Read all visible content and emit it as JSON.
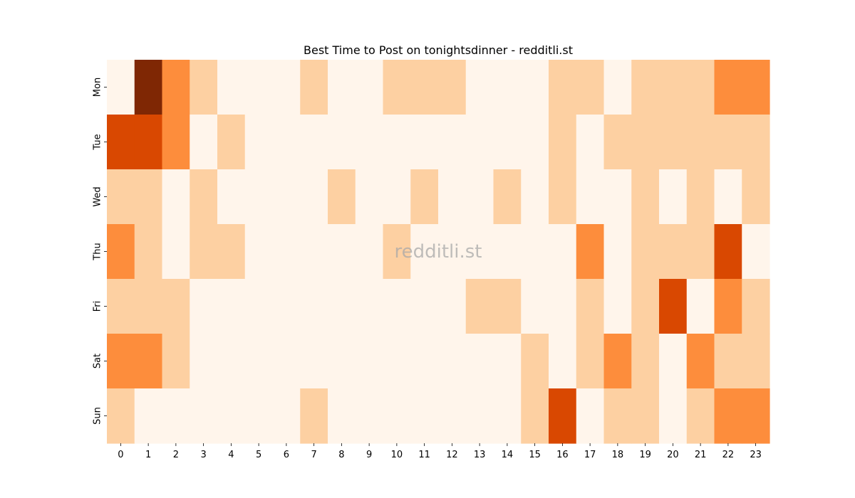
{
  "chart_data": {
    "type": "heatmap",
    "title": "Best Time to Post on tonightsdinner - redditli.st",
    "watermark": "redditli.st",
    "xlabel": "",
    "ylabel": "",
    "x": [
      "0",
      "1",
      "2",
      "3",
      "4",
      "5",
      "6",
      "7",
      "8",
      "9",
      "10",
      "11",
      "12",
      "13",
      "14",
      "15",
      "16",
      "17",
      "18",
      "19",
      "20",
      "21",
      "22",
      "23"
    ],
    "y": [
      "Mon",
      "Tue",
      "Wed",
      "Thu",
      "Fri",
      "Sat",
      "Sun"
    ],
    "colormap": "Oranges",
    "palette": [
      "#fff5eb",
      "#fdd0a2",
      "#fd8d3c",
      "#d94801",
      "#7f2704"
    ],
    "legend": "none",
    "grid": false,
    "values": [
      [
        0,
        4,
        2,
        1,
        0,
        0,
        0,
        1,
        0,
        0,
        1,
        1,
        1,
        0,
        0,
        0,
        1,
        1,
        0,
        1,
        1,
        1,
        2,
        2
      ],
      [
        3,
        3,
        2,
        0,
        1,
        0,
        0,
        0,
        0,
        0,
        0,
        0,
        0,
        0,
        0,
        0,
        1,
        0,
        1,
        1,
        1,
        1,
        1,
        1
      ],
      [
        1,
        1,
        0,
        1,
        0,
        0,
        0,
        0,
        1,
        0,
        0,
        1,
        0,
        0,
        1,
        0,
        1,
        0,
        0,
        1,
        0,
        1,
        0,
        1
      ],
      [
        2,
        1,
        0,
        1,
        1,
        0,
        0,
        0,
        0,
        0,
        1,
        0,
        0,
        0,
        0,
        0,
        0,
        2,
        0,
        1,
        1,
        1,
        3,
        0
      ],
      [
        1,
        1,
        1,
        0,
        0,
        0,
        0,
        0,
        0,
        0,
        0,
        0,
        0,
        1,
        1,
        0,
        0,
        1,
        0,
        1,
        3,
        0,
        2,
        1
      ],
      [
        2,
        2,
        1,
        0,
        0,
        0,
        0,
        0,
        0,
        0,
        0,
        0,
        0,
        0,
        0,
        1,
        0,
        1,
        2,
        1,
        0,
        2,
        1,
        1
      ],
      [
        1,
        0,
        0,
        0,
        0,
        0,
        0,
        1,
        0,
        0,
        0,
        0,
        0,
        0,
        0,
        1,
        3,
        0,
        1,
        1,
        0,
        1,
        2,
        2
      ]
    ]
  }
}
